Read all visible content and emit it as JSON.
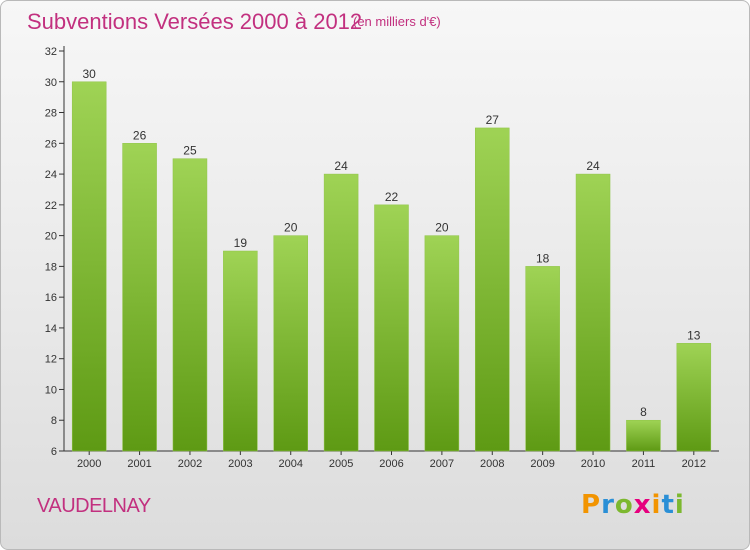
{
  "title": "Subventions Versées 2000 à 2012",
  "unit": "(en milliers d'€)",
  "commune": "VAUDELNAY",
  "logo": {
    "letters": [
      "P",
      "r",
      "o",
      "x",
      "i",
      "t",
      "i"
    ],
    "colors": [
      "#f29400",
      "#2a8fd6",
      "#7cb82f",
      "#e6007e",
      "#f29400",
      "#2a8fd6",
      "#7cb82f"
    ]
  },
  "colors": {
    "accent": "#c2307f",
    "bar_top": "#9fd355",
    "bar_bottom": "#5e9a14",
    "axis": "#333333",
    "grid": "#dddddd"
  },
  "chart_data": {
    "type": "bar",
    "categories": [
      "2000",
      "2001",
      "2002",
      "2003",
      "2004",
      "2005",
      "2006",
      "2007",
      "2008",
      "2009",
      "2010",
      "2011",
      "2012"
    ],
    "values": [
      30,
      26,
      25,
      19,
      20,
      24,
      22,
      20,
      27,
      18,
      24,
      8,
      13
    ],
    "title": "Subventions Versées 2000 à 2012",
    "ylim": [
      6,
      32
    ],
    "yticks": [
      6,
      8,
      10,
      12,
      14,
      16,
      18,
      20,
      22,
      24,
      26,
      28,
      30,
      32
    ],
    "grid": false
  }
}
